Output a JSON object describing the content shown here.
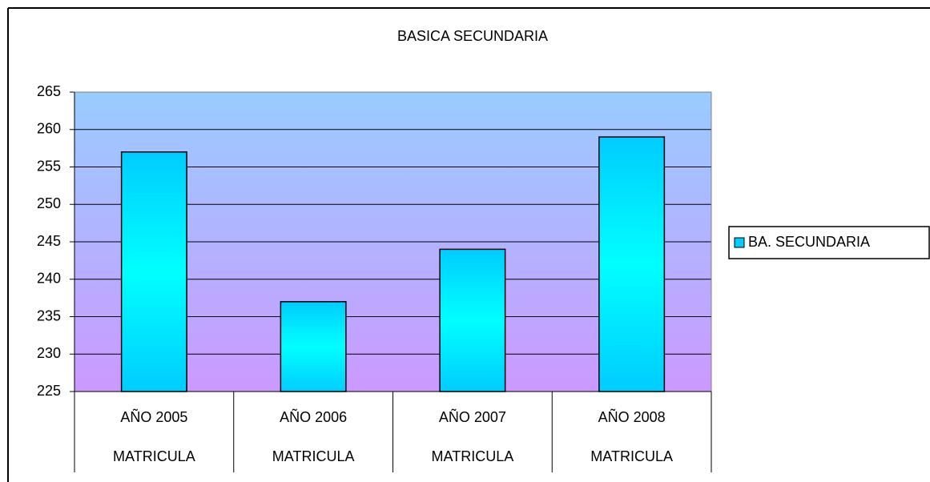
{
  "chart_data": {
    "type": "bar",
    "title": "BASICA SECUNDARIA",
    "categories": [
      "AÑO 2005",
      "AÑO 2006",
      "AÑO 2007",
      "AÑO 2008"
    ],
    "category_groups": [
      "MATRICULA",
      "MATRICULA",
      "MATRICULA",
      "MATRICULA"
    ],
    "series": [
      {
        "name": "BA. SECUNDARIA",
        "color": "#00ccff",
        "values": [
          257,
          237,
          244,
          259
        ]
      }
    ],
    "ylim": [
      225,
      265
    ],
    "yticks": [
      225,
      230,
      235,
      240,
      245,
      250,
      255,
      260,
      265
    ],
    "grid": true,
    "legend": "right"
  }
}
